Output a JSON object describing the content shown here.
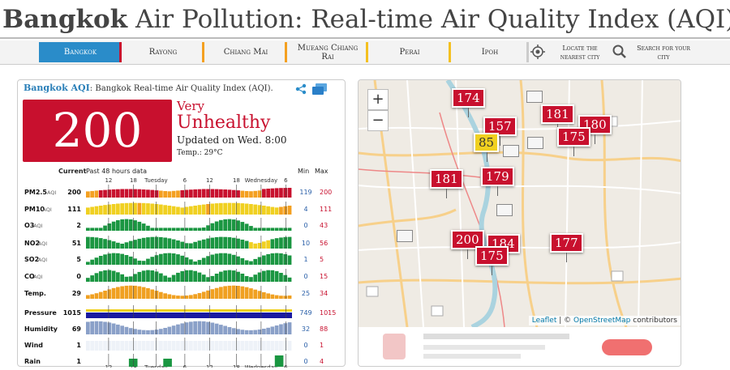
{
  "title": {
    "city": "Bangkok",
    "rest": "Air Pollution: Real-time Air Quality Index (AQI)"
  },
  "nav": {
    "items": [
      {
        "label": "Bangkok",
        "color": "#c8102e",
        "active": true
      },
      {
        "label": "Rayong",
        "color": "#f4a020"
      },
      {
        "label": "Chiang Mai",
        "color": "#f4a020"
      },
      {
        "label": "Mueang Chiang Rai",
        "color": "#f4c020"
      },
      {
        "label": "Perai",
        "color": "#f4c020"
      },
      {
        "label": "Ipoh",
        "color": "#cccccc"
      }
    ],
    "locate": "Locate the nearest city",
    "search": "Search for your city"
  },
  "panel": {
    "city": "Bangkok AQI",
    "subtitle": ": Bangkok Real-time Air Quality Index (AQI).",
    "aqi": "200",
    "level_line1": "Very",
    "level_line2": "Unhealthy",
    "updated": "Updated on Wed. 8:00",
    "temp": "Temp.: 29°C"
  },
  "colors": {
    "very_unhealthy": "#c8102e",
    "unhealthy_sensitive": "#f4a020",
    "moderate": "#f0d020",
    "good": "#1a9641",
    "temp": "#f0a020",
    "pressure": "#1a1aa0",
    "humidity": "#8aa0c8",
    "accent": "#2a8cc9"
  },
  "chart_data": {
    "type": "bar",
    "header": {
      "current": "Current",
      "past": "Past 48 hours data",
      "min": "Min",
      "max": "Max"
    },
    "time_labels": [
      "12",
      "18",
      "Tuesday",
      "6",
      "12",
      "18",
      "Wednesday",
      "6"
    ],
    "rows": [
      {
        "label": "PM2.5",
        "unit": "AQI",
        "current": "200",
        "min": "119",
        "max": "200"
      },
      {
        "label": "PM10",
        "unit": "AQI",
        "current": "111",
        "min": "4",
        "max": "111"
      },
      {
        "label": "O3",
        "unit": "AQI",
        "current": "2",
        "min": "0",
        "max": "43"
      },
      {
        "label": "NO2",
        "unit": "AQI",
        "current": "51",
        "min": "10",
        "max": "56"
      },
      {
        "label": "SO2",
        "unit": "AQI",
        "current": "5",
        "min": "1",
        "max": "5"
      },
      {
        "label": "CO",
        "unit": "AQI",
        "current": "0",
        "min": "0",
        "max": "15"
      },
      {
        "label": "Temp.",
        "unit": "",
        "current": "29",
        "min": "25",
        "max": "34"
      },
      {
        "label": "Pressure",
        "unit": "",
        "current": "1015",
        "min": "749",
        "max": "1015"
      },
      {
        "label": "Humidity",
        "unit": "",
        "current": "69",
        "min": "32",
        "max": "88"
      },
      {
        "label": "Wind",
        "unit": "",
        "current": "1",
        "min": "0",
        "max": "1"
      },
      {
        "label": "Rain",
        "unit": "",
        "current": "1",
        "min": "0",
        "max": "4"
      }
    ]
  },
  "map": {
    "zoom_in": "+",
    "zoom_out": "−",
    "markers": [
      {
        "value": "174",
        "color": "#c8102e"
      },
      {
        "value": "181",
        "color": "#c8102e"
      },
      {
        "value": "157",
        "color": "#c8102e"
      },
      {
        "value": "180",
        "color": "#c8102e"
      },
      {
        "value": "175",
        "color": "#c8102e"
      },
      {
        "value": "85",
        "color": "#f0d020"
      },
      {
        "value": "181",
        "color": "#c8102e"
      },
      {
        "value": "179",
        "color": "#c8102e"
      },
      {
        "value": "200",
        "color": "#c8102e"
      },
      {
        "value": "184",
        "color": "#c8102e"
      },
      {
        "value": "175",
        "color": "#c8102e"
      },
      {
        "value": "177",
        "color": "#c8102e"
      }
    ],
    "attribution": {
      "leaflet": "Leaflet",
      "sep": " | © ",
      "osm": "OpenStreetMap",
      "rest": " contributors"
    }
  }
}
